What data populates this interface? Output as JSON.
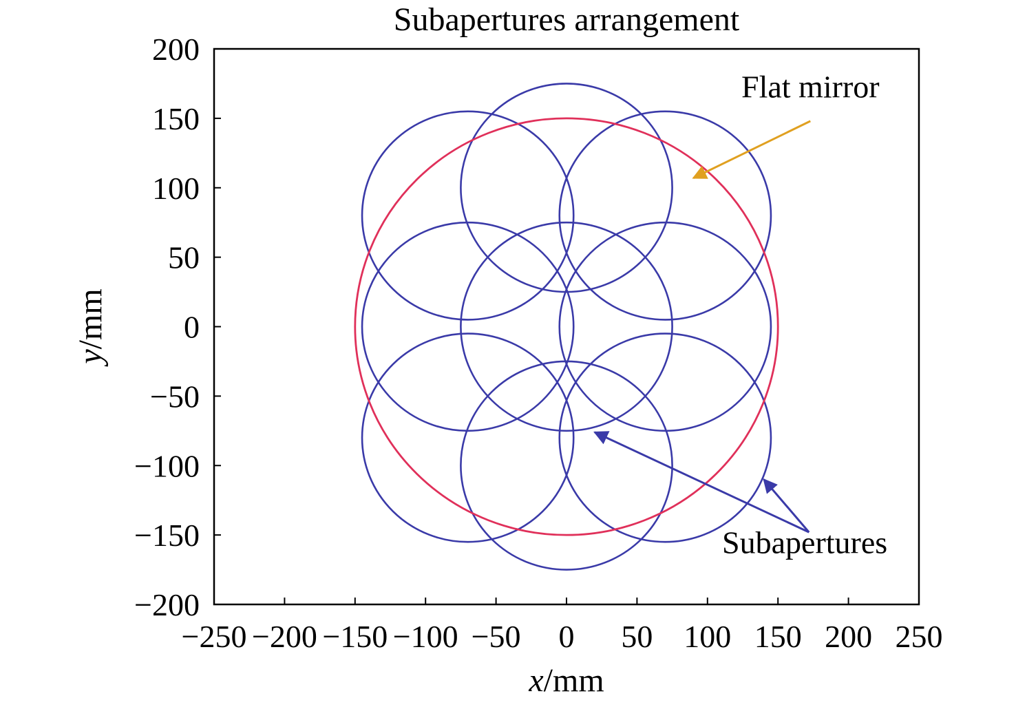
{
  "chart_data": {
    "type": "scatter",
    "title": "Subapertures arrangement",
    "xlabel": {
      "var": "x",
      "unit": "/mm"
    },
    "ylabel": {
      "var": "y",
      "unit": "/mm"
    },
    "xlim": [
      -250,
      250
    ],
    "ylim": [
      -200,
      200
    ],
    "x_ticks": [
      {
        "value": -250,
        "label": "−250"
      },
      {
        "value": -200,
        "label": "−200"
      },
      {
        "value": -150,
        "label": "−150"
      },
      {
        "value": -100,
        "label": "−100"
      },
      {
        "value": -50,
        "label": "−50"
      },
      {
        "value": 0,
        "label": "0"
      },
      {
        "value": 50,
        "label": "50"
      },
      {
        "value": 100,
        "label": "100"
      },
      {
        "value": 150,
        "label": "150"
      },
      {
        "value": 200,
        "label": "200"
      },
      {
        "value": 250,
        "label": "250"
      }
    ],
    "y_ticks": [
      {
        "value": 200,
        "label": "200"
      },
      {
        "value": 150,
        "label": "150"
      },
      {
        "value": 100,
        "label": "100"
      },
      {
        "value": 50,
        "label": "50"
      },
      {
        "value": 0,
        "label": "0"
      },
      {
        "value": -50,
        "label": "−50"
      },
      {
        "value": -100,
        "label": "−100"
      },
      {
        "value": -150,
        "label": "−150"
      },
      {
        "value": -200,
        "label": "−200"
      }
    ],
    "grid": false,
    "flat_mirror": {
      "cx": 0,
      "cy": 0,
      "r": 150,
      "color": "#e0305a"
    },
    "subapertures": {
      "r": 75,
      "color": "#3a3aa8",
      "centers": [
        {
          "x": 0,
          "y": 100
        },
        {
          "x": -70,
          "y": 80
        },
        {
          "x": 70,
          "y": 80
        },
        {
          "x": -70,
          "y": 0
        },
        {
          "x": 0,
          "y": 0
        },
        {
          "x": 70,
          "y": 0
        },
        {
          "x": -70,
          "y": -80
        },
        {
          "x": 70,
          "y": -80
        },
        {
          "x": 0,
          "y": -100
        }
      ]
    },
    "annotations": [
      {
        "text": "Flat mirror",
        "text_pos": {
          "x": 173,
          "y": 165
        },
        "arrow_color": "#e0a020",
        "arrows": [
          {
            "from": {
              "x": 173,
              "y": 148
            },
            "to": {
              "x": 90,
              "y": 107
            }
          }
        ]
      },
      {
        "text": "Subapertures",
        "text_pos": {
          "x": 169,
          "y": -163
        },
        "arrow_color": "#3a3aa8",
        "arrows": [
          {
            "from": {
              "x": 172,
              "y": -148
            },
            "to": {
              "x": 20,
              "y": -76
            }
          },
          {
            "from": {
              "x": 172,
              "y": -148
            },
            "to": {
              "x": 140,
              "y": -110
            }
          }
        ]
      }
    ]
  }
}
